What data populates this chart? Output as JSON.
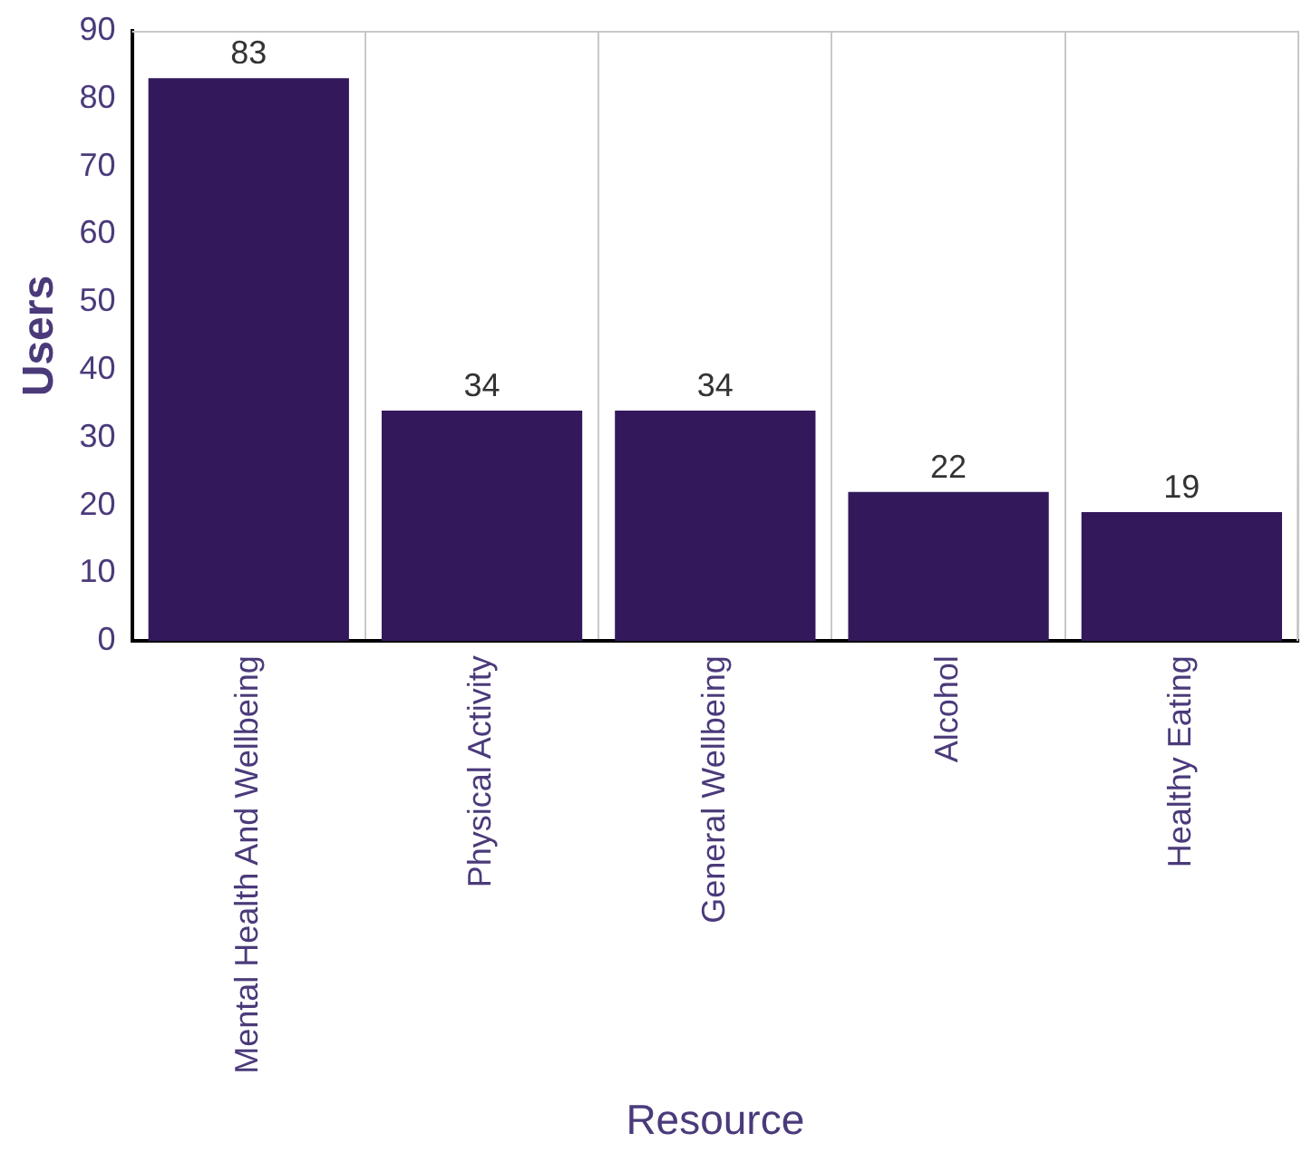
{
  "chart_data": {
    "type": "bar",
    "xlabel": "Resource",
    "ylabel": "Users",
    "categories": [
      "Mental Health And Wellbeing",
      "Physical Activity",
      "General Wellbeing",
      "Alcohol",
      "Healthy Eating"
    ],
    "values": [
      83,
      34,
      34,
      22,
      19
    ],
    "color": "#33195c",
    "ylim": [
      0,
      90
    ],
    "yticks": [
      0,
      10,
      20,
      30,
      40,
      50,
      60,
      70,
      80,
      90
    ],
    "grid": "x",
    "data_labels": true,
    "legend": false
  }
}
